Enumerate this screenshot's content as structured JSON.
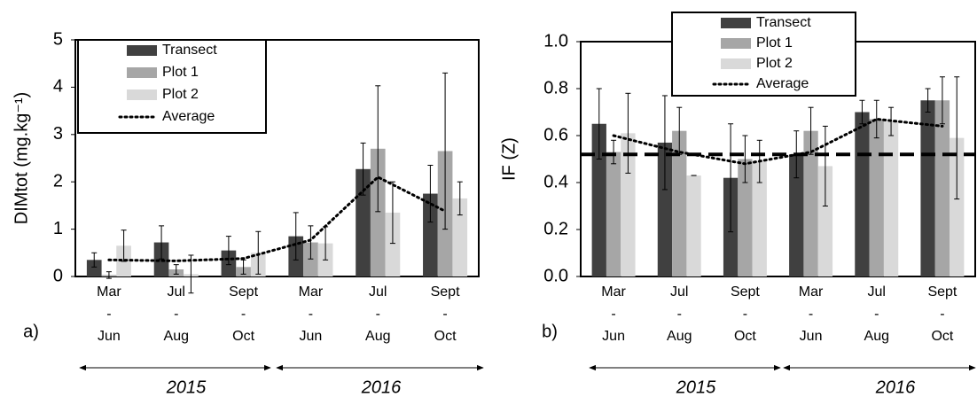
{
  "chart_data": [
    {
      "type": "bar",
      "panel_label": "a)",
      "y_label": "DIMtot (mg.kg⁻¹)",
      "categories": [
        [
          "Mar",
          "-",
          "Jun"
        ],
        [
          "Jul",
          "-",
          "Aug"
        ],
        [
          "Sept",
          "-",
          "Oct"
        ],
        [
          "Mar",
          "-",
          "Jun"
        ],
        [
          "Jul",
          "-",
          "Aug"
        ],
        [
          "Sept",
          "-",
          "Oct"
        ]
      ],
      "years": [
        "2015",
        "2016"
      ],
      "ylim": [
        0,
        5
      ],
      "yticks": [
        0,
        1,
        2,
        3,
        4,
        5
      ],
      "series": [
        {
          "name": "Transect",
          "type": "bar",
          "color": "#404040",
          "values": [
            0.35,
            0.72,
            0.55,
            0.85,
            2.27,
            1.75
          ],
          "errors": [
            0.15,
            0.35,
            0.3,
            0.5,
            0.55,
            0.6
          ]
        },
        {
          "name": "Plot 1",
          "type": "bar",
          "color": "#a6a6a6",
          "values": [
            0.03,
            0.15,
            0.2,
            0.72,
            2.7,
            2.65
          ],
          "errors": [
            0.07,
            0.1,
            0.15,
            0.35,
            1.33,
            1.65
          ]
        },
        {
          "name": "Plot 2",
          "type": "bar",
          "color": "#d9d9d9",
          "values": [
            0.65,
            0.05,
            0.5,
            0.7,
            1.35,
            1.65
          ],
          "errors": [
            0.33,
            0.4,
            0.45,
            0.35,
            0.65,
            0.35
          ]
        },
        {
          "name": "Average",
          "type": "line",
          "color": "#000000",
          "values": [
            0.35,
            0.33,
            0.38,
            0.77,
            2.1,
            1.38
          ]
        }
      ]
    },
    {
      "type": "bar",
      "panel_label": "b)",
      "y_label": "IF (Z)",
      "categories": [
        [
          "Mar",
          "-",
          "Jun"
        ],
        [
          "Jul",
          "-",
          "Aug"
        ],
        [
          "Sept",
          "-",
          "Oct"
        ],
        [
          "Mar",
          "-",
          "Jun"
        ],
        [
          "Jul",
          "-",
          "Aug"
        ],
        [
          "Sept",
          "-",
          "Oct"
        ]
      ],
      "years": [
        "2015",
        "2016"
      ],
      "ylim": [
        0,
        1
      ],
      "yticks": [
        {
          "value": 0,
          "label": "0.0"
        },
        0.2,
        0.4,
        0.6,
        0.8,
        {
          "value": 1,
          "label": "1.0"
        }
      ],
      "reference_line": 0.52,
      "series": [
        {
          "name": "Transect",
          "type": "bar",
          "color": "#404040",
          "values": [
            0.65,
            0.57,
            0.42,
            0.52,
            0.7,
            0.75
          ],
          "errors": [
            0.15,
            0.2,
            0.23,
            0.1,
            0.05,
            0.05
          ]
        },
        {
          "name": "Plot 1",
          "type": "bar",
          "color": "#a6a6a6",
          "values": [
            0.53,
            0.62,
            0.5,
            0.62,
            0.67,
            0.75
          ],
          "errors": [
            0.05,
            0.1,
            0.1,
            0.1,
            0.08,
            0.1
          ]
        },
        {
          "name": "Plot 2",
          "type": "bar",
          "color": "#d9d9d9",
          "values": [
            0.61,
            0.43,
            0.49,
            0.47,
            0.66,
            0.59
          ],
          "errors": [
            0.17,
            0,
            0.09,
            0.17,
            0.06,
            0.26
          ]
        },
        {
          "name": "Average",
          "type": "line",
          "color": "#000000",
          "values": [
            0.6,
            0.53,
            0.48,
            0.53,
            0.67,
            0.64
          ]
        }
      ]
    }
  ]
}
